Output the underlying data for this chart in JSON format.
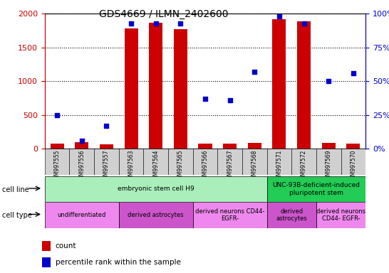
{
  "title": "GDS4669 / ILMN_2402600",
  "samples": [
    "GSM997555",
    "GSM997556",
    "GSM997557",
    "GSM997563",
    "GSM997564",
    "GSM997565",
    "GSM997566",
    "GSM997567",
    "GSM997568",
    "GSM997571",
    "GSM997572",
    "GSM997569",
    "GSM997570"
  ],
  "count_values": [
    80,
    100,
    70,
    1780,
    1870,
    1770,
    80,
    80,
    90,
    1920,
    1890,
    90,
    80
  ],
  "percentile_values": [
    25,
    6,
    17,
    93,
    93,
    93,
    37,
    36,
    57,
    98,
    93,
    50,
    56
  ],
  "ylim_left": [
    0,
    2000
  ],
  "ylim_right": [
    0,
    100
  ],
  "yticks_left": [
    0,
    500,
    1000,
    1500,
    2000
  ],
  "ytick_labels_right": [
    "0%",
    "25%",
    "50%",
    "75%",
    "100%"
  ],
  "yticks_right": [
    0,
    25,
    50,
    75,
    100
  ],
  "cell_line_groups": [
    {
      "label": "embryonic stem cell H9",
      "start": 0,
      "end": 9,
      "color": "#aaeebb"
    },
    {
      "label": "UNC-93B-deficient-induced\npluripotent stem",
      "start": 9,
      "end": 13,
      "color": "#22cc55"
    }
  ],
  "cell_type_groups": [
    {
      "label": "undifferentiated",
      "start": 0,
      "end": 3,
      "color": "#ee88ee"
    },
    {
      "label": "derived astrocytes",
      "start": 3,
      "end": 6,
      "color": "#cc55cc"
    },
    {
      "label": "derived neurons CD44-\nEGFR-",
      "start": 6,
      "end": 9,
      "color": "#ee88ee"
    },
    {
      "label": "derived\nastrocytes",
      "start": 9,
      "end": 11,
      "color": "#cc55cc"
    },
    {
      "label": "derived neurons\nCD44- EGFR-",
      "start": 11,
      "end": 13,
      "color": "#ee88ee"
    }
  ],
  "bar_color": "#cc0000",
  "scatter_color": "#0000cc",
  "tick_color_left": "#cc0000",
  "tick_color_right": "#0000cc",
  "bg_color": "#ffffff",
  "xticklabel_bg": "#d0d0d0",
  "grid_color": "#000000",
  "chart_bg": "#ffffff"
}
